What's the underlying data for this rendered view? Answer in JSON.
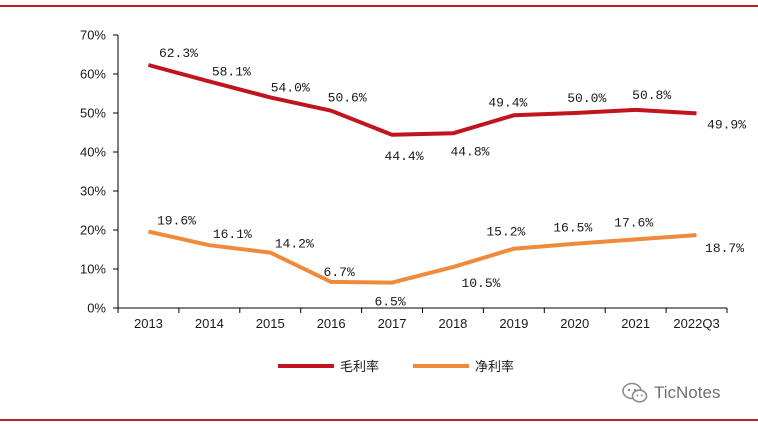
{
  "colors": {
    "rule": "#b8202a",
    "gross": "#c0141e",
    "net": "#ef8a3c",
    "axis": "#000000",
    "watermark": "#8c8c8c"
  },
  "watermark": {
    "icon": "wechat-icon",
    "text": "TicNotes"
  },
  "chart_data": {
    "type": "line",
    "title": "",
    "xlabel": "",
    "ylabel": "",
    "categories": [
      "2013",
      "2014",
      "2015",
      "2016",
      "2017",
      "2018",
      "2019",
      "2020",
      "2021",
      "2022Q3"
    ],
    "ylim": [
      0,
      70
    ],
    "yticks": [
      0,
      10,
      20,
      30,
      40,
      50,
      60,
      70
    ],
    "ytick_labels": [
      "0%",
      "10%",
      "20%",
      "30%",
      "40%",
      "50%",
      "60%",
      "70%"
    ],
    "grid": false,
    "legend_position": "bottom-center",
    "series": [
      {
        "name": "毛利率",
        "color_key": "gross",
        "values": [
          62.3,
          58.1,
          54.0,
          50.6,
          44.4,
          44.8,
          49.4,
          50.0,
          50.8,
          49.9
        ],
        "labels": [
          "62.3%",
          "58.1%",
          "54.0%",
          "50.6%",
          "44.4%",
          "44.8%",
          "49.4%",
          "50.0%",
          "50.8%",
          "49.9%"
        ]
      },
      {
        "name": "净利率",
        "color_key": "net",
        "values": [
          19.6,
          16.1,
          14.2,
          6.7,
          6.5,
          10.5,
          15.2,
          16.5,
          17.6,
          18.7
        ],
        "labels": [
          "19.6%",
          "16.1%",
          "14.2%",
          "6.7%",
          "6.5%",
          "10.5%",
          "15.2%",
          "16.5%",
          "17.6%",
          "18.7%"
        ]
      }
    ]
  }
}
